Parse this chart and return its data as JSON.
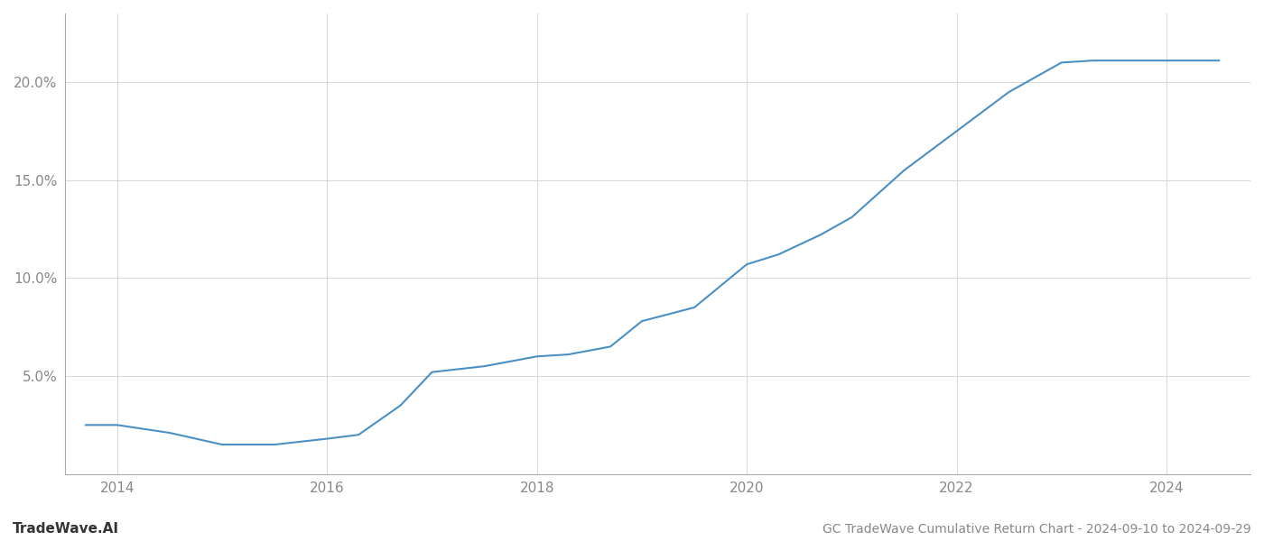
{
  "x_values": [
    2013.7,
    2014.0,
    2014.5,
    2015.0,
    2015.5,
    2016.0,
    2016.3,
    2016.7,
    2017.0,
    2017.5,
    2018.0,
    2018.3,
    2018.7,
    2019.0,
    2019.5,
    2020.0,
    2020.3,
    2020.7,
    2021.0,
    2021.5,
    2022.0,
    2022.5,
    2023.0,
    2023.3,
    2024.0,
    2024.5
  ],
  "y_values": [
    2.5,
    2.5,
    2.1,
    1.5,
    1.5,
    1.8,
    2.0,
    3.5,
    5.2,
    5.5,
    6.0,
    6.1,
    6.5,
    7.8,
    8.5,
    10.7,
    11.2,
    12.2,
    13.1,
    15.5,
    17.5,
    19.5,
    21.0,
    21.1,
    21.1,
    21.1
  ],
  "line_color": "#4a90c4",
  "line_width": 1.5,
  "title": "GC TradeWave Cumulative Return Chart - 2024-09-10 to 2024-09-29",
  "watermark_left": "TradeWave.AI",
  "xlim": [
    2013.5,
    2024.8
  ],
  "ylim": [
    0,
    23.5
  ],
  "yticks": [
    5.0,
    10.0,
    15.0,
    20.0
  ],
  "ytick_labels": [
    "5.0%",
    "10.0%",
    "15.0%",
    "20.0%"
  ],
  "xticks": [
    2014,
    2016,
    2018,
    2020,
    2022,
    2024
  ],
  "grid_color": "#d0d0d0",
  "background_color": "#ffffff",
  "font_color": "#888888",
  "title_fontsize": 10,
  "tick_fontsize": 11,
  "watermark_fontsize": 11
}
